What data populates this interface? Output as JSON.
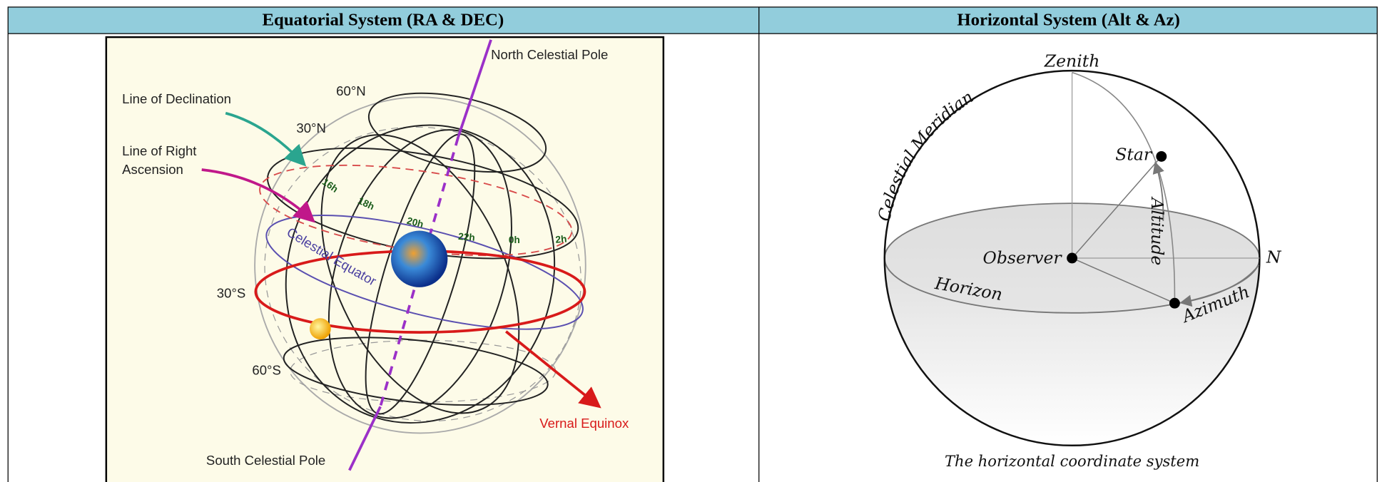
{
  "table": {
    "headers": [
      "Equatorial System (RA & DEC)",
      "Horizontal System (Alt & Az)"
    ],
    "equatorial_diagram": {
      "labels": [
        "North Celestial Pole",
        "Line of Declination",
        "60°N",
        "30°N",
        "Line of Right",
        "Ascension",
        "Celestial Equator",
        "30°S",
        "60°S",
        "Vernal Equinox",
        "South Celestial Pole"
      ],
      "hour_labels": [
        "16h",
        "18h",
        "20h",
        "22h",
        "0h",
        "2h"
      ]
    },
    "horizontal_diagram": {
      "labels": [
        "Zenith",
        "Celestial Meridian",
        "Star",
        "Altitude",
        "Observer",
        "N",
        "Horizon",
        "Azimuth"
      ],
      "caption": "The horizontal coordinate system"
    }
  }
}
